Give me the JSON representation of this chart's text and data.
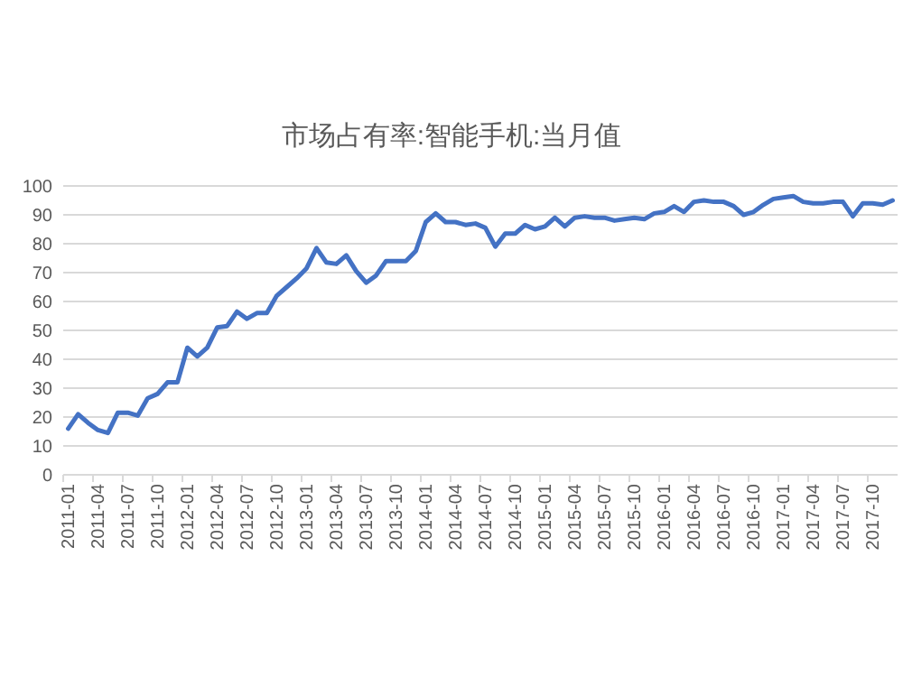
{
  "chart_data": {
    "type": "line",
    "title": "市场占有率:智能手机:当月值",
    "categories": [
      "2011-01",
      null,
      null,
      "2011-04",
      null,
      null,
      "2011-07",
      null,
      null,
      "2011-10",
      null,
      null,
      "2012-01",
      null,
      null,
      "2012-04",
      null,
      null,
      "2012-07",
      null,
      null,
      "2012-10",
      null,
      null,
      "2013-01",
      null,
      null,
      "2013-04",
      null,
      null,
      "2013-07",
      null,
      null,
      "2013-10",
      null,
      null,
      "2014-01",
      null,
      null,
      "2014-04",
      null,
      null,
      "2014-07",
      null,
      null,
      "2014-10",
      null,
      null,
      "2015-01",
      null,
      null,
      "2015-04",
      null,
      null,
      "2015-07",
      null,
      null,
      "2015-10",
      null,
      null,
      "2016-01",
      null,
      null,
      "2016-04",
      null,
      null,
      "2016-07",
      null,
      null,
      "2016-10",
      null,
      null,
      "2017-01",
      null,
      null,
      "2017-04",
      null,
      null,
      "2017-07",
      null,
      null,
      "2017-10",
      null,
      null
    ],
    "series": [
      {
        "color": "#4472c4",
        "values": [
          16,
          21,
          18,
          15.5,
          14.5,
          21.5,
          21.5,
          20.5,
          26.5,
          28,
          32,
          32,
          44,
          41,
          44,
          51,
          51.5,
          56.5,
          54,
          56,
          56,
          62,
          65,
          68,
          71.5,
          78.5,
          73.5,
          73,
          76,
          70.5,
          66.5,
          69,
          74,
          74,
          74,
          77.5,
          87.5,
          90.5,
          87.5,
          87.5,
          86.5,
          87,
          85.5,
          79,
          83.5,
          83.5,
          86.5,
          85,
          86,
          89,
          86,
          89,
          89.5,
          89,
          89,
          88,
          88.5,
          89,
          88.5,
          90.5,
          91,
          93,
          91,
          94.5,
          95,
          94.5,
          94.5,
          93,
          90,
          91,
          93.5,
          95.5,
          96,
          96.5,
          94.5,
          94,
          94,
          94.5,
          94.5,
          89.5,
          94,
          94,
          93.5,
          95
        ]
      }
    ],
    "ylim": [
      0,
      100
    ],
    "yticks": [
      0,
      10,
      20,
      30,
      40,
      50,
      60,
      70,
      80,
      90,
      100
    ],
    "grid": "y",
    "marker": "none",
    "line_style": "solid"
  }
}
